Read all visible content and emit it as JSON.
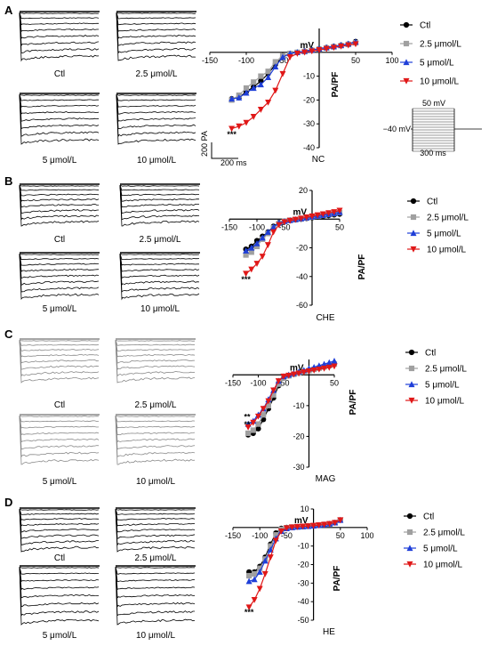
{
  "legend": [
    "Ctl",
    "2.5 μmol/L",
    "5 μmol/L",
    "10 μmol/L"
  ],
  "series_colors": [
    "#000000",
    "#a0a0a0",
    "#1f3fd8",
    "#e01818"
  ],
  "series_markers": [
    "circle",
    "square",
    "triangle-up",
    "triangle-down"
  ],
  "axis_labels": {
    "x": "mV",
    "y": "PA/PF"
  },
  "scale_bar": {
    "current": "200 PA",
    "time": "200 ms"
  },
  "protocol": {
    "top": "50 mV",
    "hold": "−40 mV",
    "duration": "300 ms"
  },
  "panels": [
    {
      "letter": "A",
      "traces": {
        "captions": [
          "Ctl",
          "2.5 μmol/L",
          "5 μmol/L",
          "10 μmol/L"
        ],
        "shade": "#000000"
      },
      "chart": {
        "type": "line",
        "group": "NC",
        "xlim": [
          -150,
          100
        ],
        "ylim": [
          -40,
          10
        ],
        "xticks": [
          -150,
          -100,
          -50,
          50,
          100
        ],
        "yticks": [
          -40,
          -30,
          -20,
          -10
        ],
        "x": [
          -120,
          -110,
          -100,
          -90,
          -80,
          -70,
          -60,
          -50,
          -40,
          -30,
          -20,
          -10,
          0,
          10,
          20,
          30,
          40,
          50
        ],
        "series": [
          {
            "name": "Ctl",
            "values": [
              -19.5,
              -19,
              -16.5,
              -14.5,
              -12,
              -9,
              -5,
              -2,
              -0.5,
              0,
              0.5,
              1,
              1.5,
              2,
              2.5,
              3,
              3.5,
              4.5
            ]
          },
          {
            "name": "2.5 μmol/L",
            "values": [
              -20,
              -18,
              -15,
              -12.5,
              -10,
              -8,
              -4,
              -1.5,
              -0.5,
              0,
              0.3,
              0.8,
              1.3,
              1.8,
              2.3,
              2.8,
              3.3,
              4
            ]
          },
          {
            "name": "5 μmol/L",
            "values": [
              -19.5,
              -19,
              -17,
              -15,
              -13.5,
              -10.5,
              -6,
              -2,
              -0.5,
              0,
              0.5,
              1,
              1.5,
              2,
              2.5,
              3,
              3.6,
              4.4
            ]
          },
          {
            "name": "10 μmol/L",
            "values": [
              -32,
              -31,
              -29.5,
              -27,
              -24,
              -21,
              -16,
              -9,
              -2,
              -0.5,
              0,
              0.5,
              1,
              1.5,
              2,
              2.5,
              3,
              3.5
            ]
          }
        ],
        "annotations": [
          {
            "text": "***",
            "x": -120,
            "y": -35.5
          }
        ]
      }
    },
    {
      "letter": "B",
      "traces": {
        "captions": [
          "Ctl",
          "2.5 μmol/L",
          "5 μmol/L",
          "10 μmol/L"
        ],
        "shade": "#000000"
      },
      "chart": {
        "type": "line",
        "group": "CHE",
        "xlim": [
          -150,
          50
        ],
        "ylim": [
          -60,
          20
        ],
        "xticks": [
          -150,
          -100,
          -50,
          50
        ],
        "yticks": [
          -60,
          -40,
          -20,
          20
        ],
        "x": [
          -120,
          -110,
          -100,
          -90,
          -80,
          -70,
          -60,
          -50,
          -40,
          -30,
          -20,
          -10,
          0,
          10,
          20,
          30,
          40,
          50
        ],
        "series": [
          {
            "name": "Ctl",
            "values": [
              -21,
              -19,
              -15,
              -12,
              -9,
              -5,
              -2.5,
              -1.5,
              -1,
              -0.5,
              0,
              0.5,
              1,
              1.5,
              2,
              2.5,
              3,
              3.5
            ]
          },
          {
            "name": "2.5 μmol/L",
            "values": [
              -25,
              -23,
              -19,
              -14,
              -10,
              -6,
              -3,
              -1.5,
              -0.8,
              -0.3,
              0.2,
              0.8,
              1.4,
              2,
              2.6,
              3.2,
              3.8,
              4.5
            ]
          },
          {
            "name": "5 μmol/L",
            "values": [
              -22,
              -20,
              -17,
              -13,
              -9,
              -5.5,
              -2.5,
              -1.5,
              -0.8,
              -0.2,
              0.4,
              1,
              1.6,
              2.2,
              2.8,
              3.4,
              4,
              4.8
            ]
          },
          {
            "name": "10 μmol/L",
            "values": [
              -38,
              -35,
              -31,
              -26,
              -18,
              -9,
              -4,
              -2,
              -1,
              -0.3,
              0.5,
              1.3,
              2,
              2.8,
              3.5,
              4.3,
              5,
              6
            ]
          }
        ],
        "annotations": [
          {
            "text": "***",
            "x": -120,
            "y": -44
          }
        ]
      }
    },
    {
      "letter": "C",
      "traces": {
        "captions": [
          "Ctl",
          "2.5 μmol/L",
          "5 μmol/L",
          "10 μmol/L"
        ],
        "shade": "#8a8a8a"
      },
      "chart": {
        "type": "line",
        "group": "MAG",
        "xlim": [
          -150,
          50
        ],
        "ylim": [
          -30,
          5
        ],
        "xticks": [
          -150,
          -100,
          -50,
          50
        ],
        "yticks": [
          -30,
          -20,
          -10
        ],
        "x": [
          -120,
          -110,
          -100,
          -90,
          -80,
          -70,
          -60,
          -50,
          -40,
          -30,
          -20,
          -10,
          0,
          10,
          20,
          30,
          40,
          50
        ],
        "series": [
          {
            "name": "Ctl",
            "values": [
              -19.5,
              -19,
              -17.5,
              -14.5,
              -11,
              -7.5,
              -3.5,
              -1,
              -0.3,
              0.2,
              0.6,
              1,
              1.4,
              1.8,
              2.2,
              2.6,
              3,
              3.5
            ]
          },
          {
            "name": "2.5 μmol/L",
            "values": [
              -19,
              -18,
              -16,
              -13,
              -10,
              -6.5,
              -3,
              -1,
              -0.3,
              0.2,
              0.6,
              1,
              1.4,
              1.8,
              2.2,
              2.6,
              3,
              3.5
            ]
          },
          {
            "name": "5 μmol/L",
            "values": [
              -16,
              -15,
              -13,
              -11,
              -8,
              -5,
              -2,
              -0.5,
              0,
              0.5,
              1,
              1.5,
              2,
              2.5,
              3,
              3.5,
              4,
              4.5
            ]
          },
          {
            "name": "10 μmol/L",
            "values": [
              -17,
              -15.5,
              -13.5,
              -11,
              -8.5,
              -5,
              -2,
              -0.5,
              -0.2,
              0.2,
              0.5,
              0.9,
              1.2,
              1.5,
              1.8,
              2.1,
              2.4,
              2.8
            ]
          }
        ],
        "annotations": [
          {
            "text": "**",
            "x": -122,
            "y": -14.5
          },
          {
            "text": "**",
            "x": -122,
            "y": -17
          }
        ]
      }
    },
    {
      "letter": "D",
      "traces": {
        "captions": [
          "Ctl",
          "2.5 μmol/L",
          "5 μmol/L",
          "10 μmol/L"
        ],
        "shade": "#000000"
      },
      "chart": {
        "type": "line",
        "group": "HE",
        "xlim": [
          -150,
          100
        ],
        "ylim": [
          -50,
          10
        ],
        "xticks": [
          -150,
          -100,
          -50,
          50,
          100
        ],
        "yticks": [
          -50,
          -40,
          -30,
          -20,
          -10,
          10
        ],
        "x": [
          -120,
          -110,
          -100,
          -90,
          -80,
          -70,
          -60,
          -50,
          -40,
          -30,
          -20,
          -10,
          0,
          10,
          20,
          30,
          40,
          50
        ],
        "series": [
          {
            "name": "Ctl",
            "values": [
              -24,
              -24,
              -21,
              -16,
              -9,
              -3,
              -0.5,
              0,
              0.2,
              0.4,
              0.6,
              0.8,
              1,
              1.3,
              1.6,
              2,
              2.6,
              4
            ]
          },
          {
            "name": "2.5 μmol/L",
            "values": [
              -26,
              -25,
              -22,
              -17,
              -10,
              -4,
              -1,
              -0.2,
              0.2,
              0.4,
              0.6,
              0.8,
              1,
              1.3,
              1.6,
              2,
              2.6,
              4
            ]
          },
          {
            "name": "5 μmol/L",
            "values": [
              -29,
              -28,
              -24,
              -18,
              -12,
              -6,
              -2,
              -0.5,
              0,
              0.3,
              0.5,
              0.7,
              0.9,
              1.2,
              1.5,
              2,
              2.6,
              4
            ]
          },
          {
            "name": "10 μmol/L",
            "values": [
              -43,
              -39,
              -33,
              -25,
              -16,
              -7,
              -2,
              -0.3,
              0.2,
              0.4,
              0.6,
              0.8,
              1,
              1.3,
              1.6,
              2,
              2.6,
              4
            ]
          }
        ],
        "annotations": [
          {
            "text": "***",
            "x": -120,
            "y": -47
          }
        ]
      }
    }
  ]
}
